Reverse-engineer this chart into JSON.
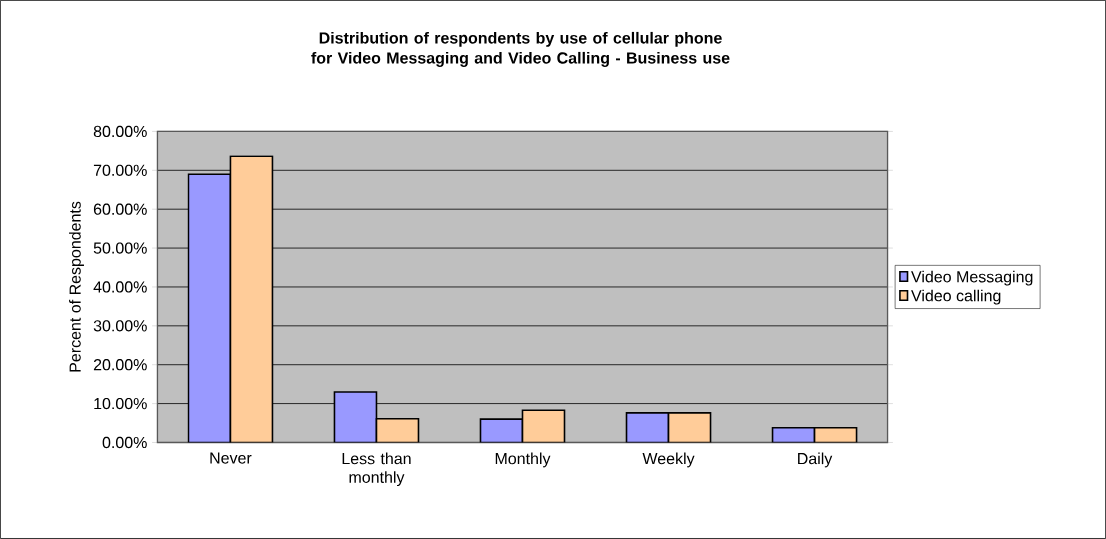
{
  "chart_data": {
    "type": "bar",
    "title": "Distribution of respondents by use of cellular phone for Video Messaging and Video Calling - Business use",
    "ylabel": "Percent of Respondents",
    "categories": [
      "Never",
      "Less than monthly",
      "Monthly",
      "Weekly",
      "Daily"
    ],
    "series": [
      {
        "name": "Video Messaging",
        "color": "#9999ff",
        "values": [
          69.0,
          13.0,
          6.0,
          7.6,
          3.8
        ]
      },
      {
        "name": "Video calling",
        "color": "#ffcc99",
        "values": [
          73.6,
          6.1,
          8.3,
          7.6,
          3.8
        ]
      }
    ],
    "ylim": [
      0,
      80
    ],
    "yticks": [
      {
        "value": 0,
        "label": "0.00%"
      },
      {
        "value": 10,
        "label": "10.00%"
      },
      {
        "value": 20,
        "label": "20.00%"
      },
      {
        "value": 30,
        "label": "30.00%"
      },
      {
        "value": 40,
        "label": "40.00%"
      },
      {
        "value": 50,
        "label": "50.00%"
      },
      {
        "value": 60,
        "label": "60.00%"
      },
      {
        "value": 70,
        "label": "70.00%"
      },
      {
        "value": 80,
        "label": "80.00%"
      }
    ],
    "grid": "y",
    "legend": "right"
  }
}
